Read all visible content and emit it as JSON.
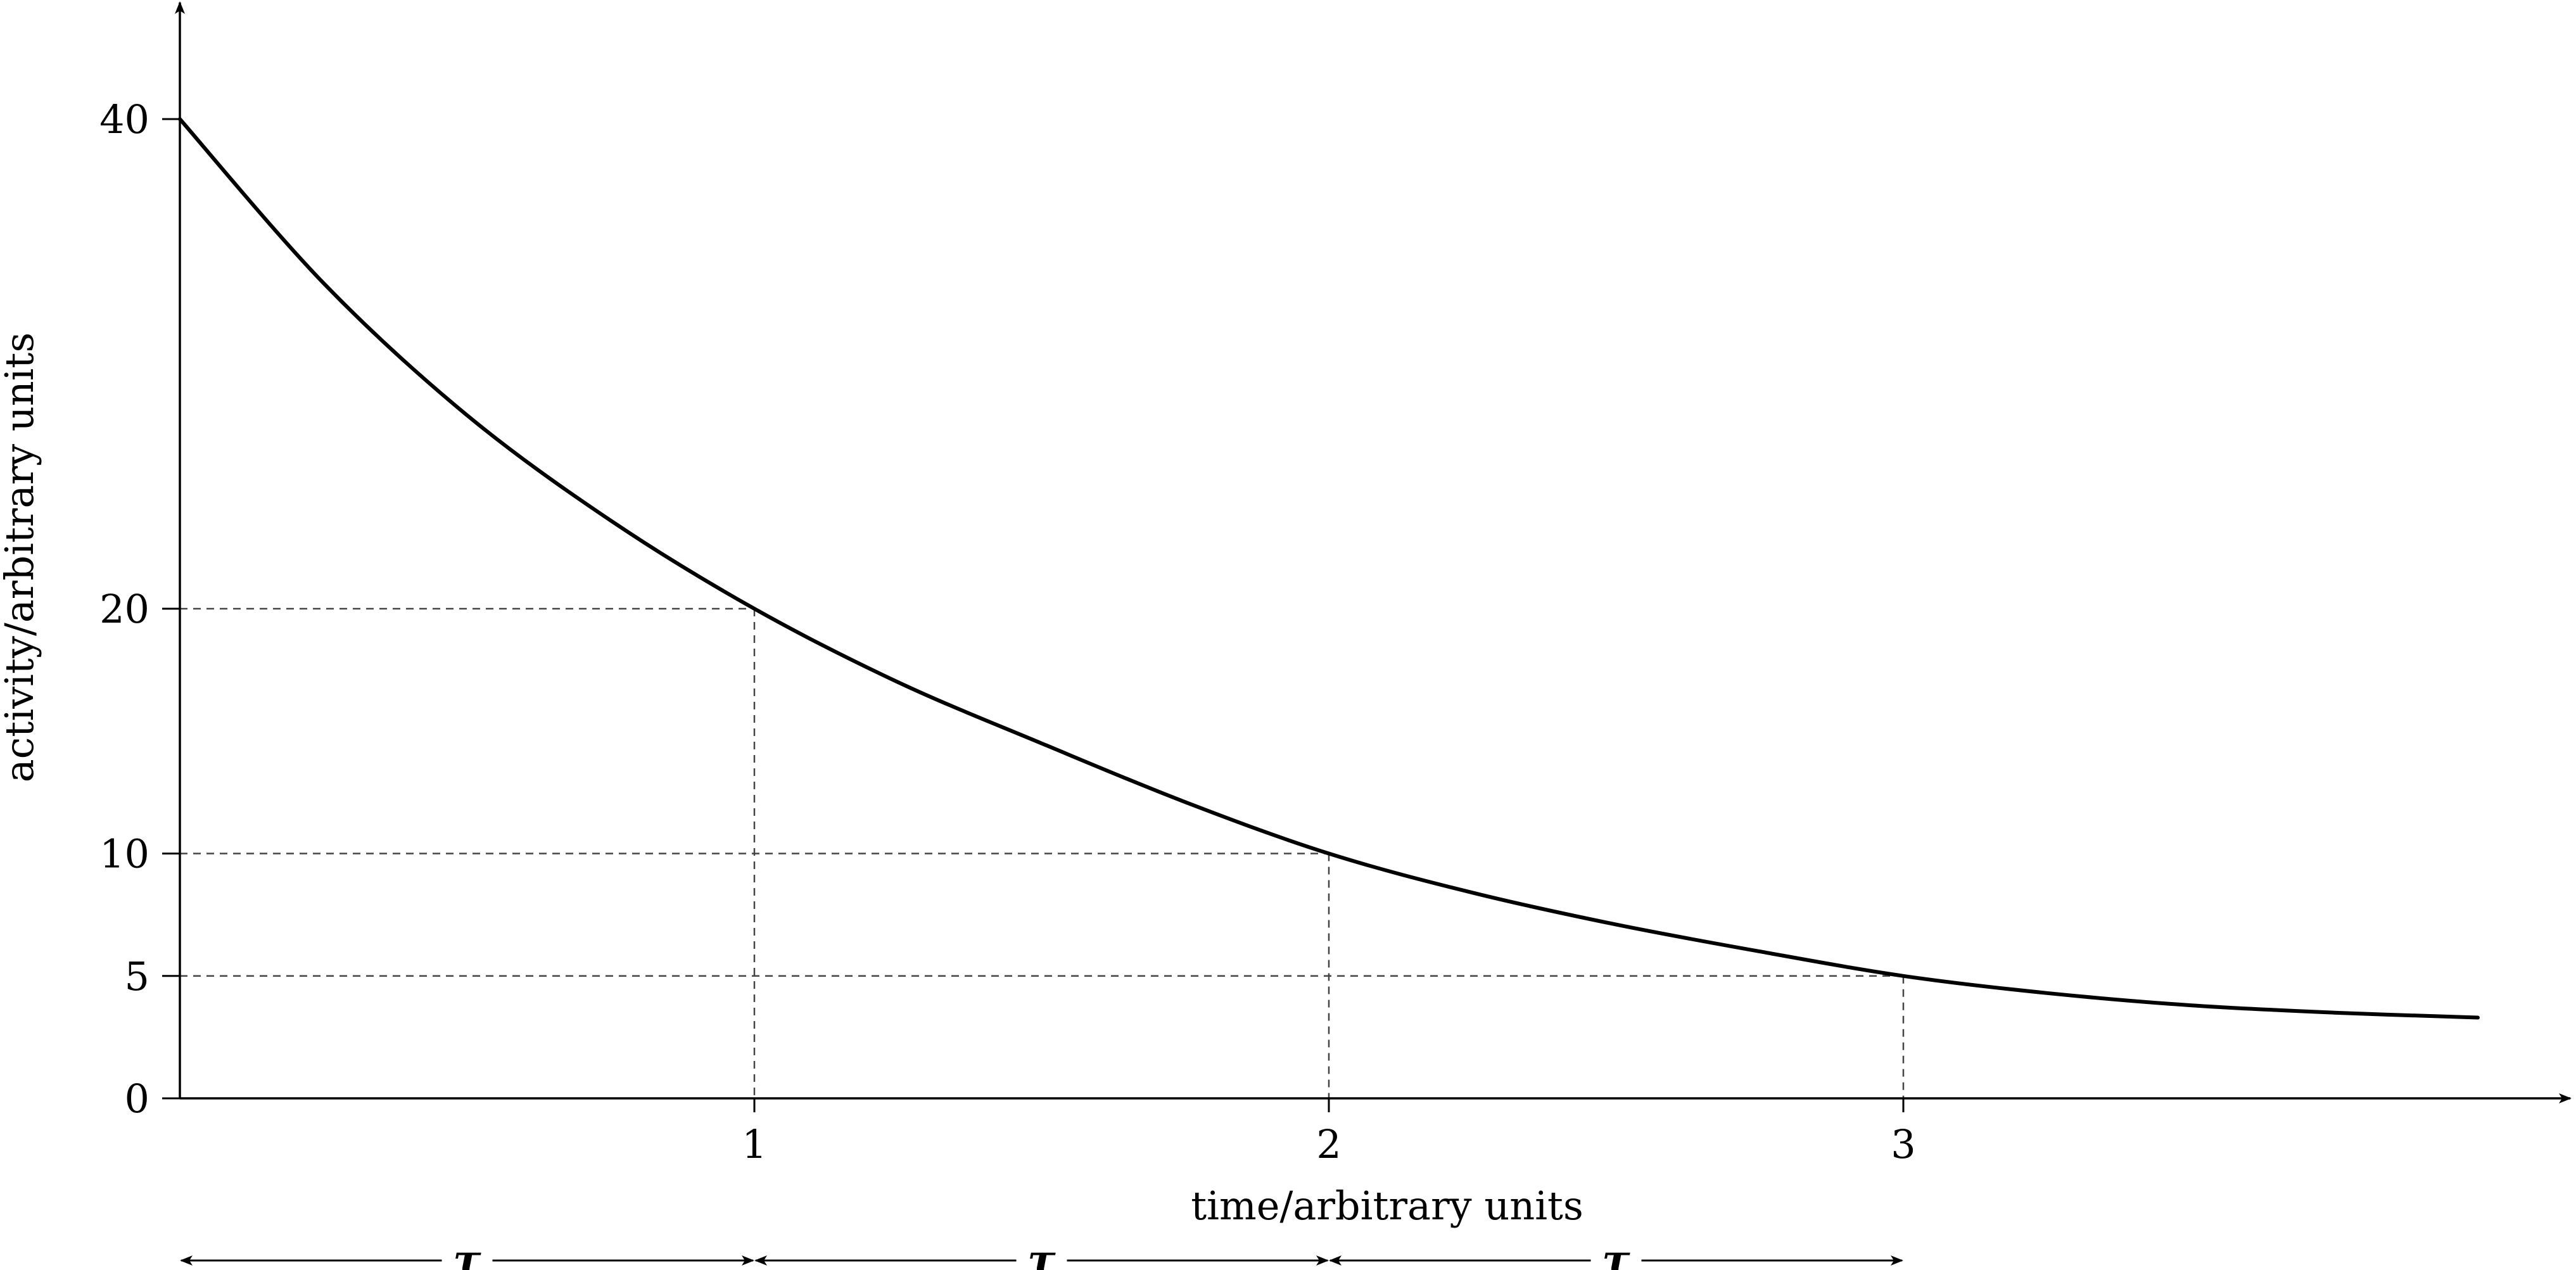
{
  "chart_data": {
    "type": "line",
    "title": "",
    "xlabel": "time/arbitrary units",
    "ylabel": "activity/arbitrary units",
    "xlim": [
      0,
      4.1
    ],
    "ylim": [
      0,
      40
    ],
    "x_ticks": [
      {
        "value": 1,
        "label": "1"
      },
      {
        "value": 2,
        "label": "2"
      },
      {
        "value": 3,
        "label": "3"
      }
    ],
    "y_ticks": [
      {
        "value": 0,
        "label": "0"
      },
      {
        "value": 5,
        "label": "5"
      },
      {
        "value": 10,
        "label": "10"
      },
      {
        "value": 20,
        "label": "20"
      },
      {
        "value": 40,
        "label": "40"
      }
    ],
    "series": [
      {
        "x": [
          0,
          0.25,
          0.5,
          0.75,
          1.0,
          1.25,
          1.5,
          1.75,
          2.0,
          2.25,
          2.5,
          2.75,
          3.0,
          3.25,
          3.5,
          3.75,
          4.0
        ],
        "y": [
          40,
          33.3,
          27.9,
          23.6,
          20,
          17.0,
          14.5,
          12.1,
          10,
          8.4,
          7.1,
          6.0,
          5.0,
          4.3,
          3.8,
          3.5,
          3.3
        ]
      }
    ],
    "reference_lines": [
      {
        "x": 1,
        "y": 20
      },
      {
        "x": 2,
        "y": 10
      },
      {
        "x": 3,
        "y": 5
      }
    ],
    "intervals": [
      {
        "from": 0,
        "to": 1,
        "label": "τ"
      },
      {
        "from": 1,
        "to": 2,
        "label": "τ"
      },
      {
        "from": 2,
        "to": 3,
        "label": "τ"
      }
    ],
    "grid": false,
    "legend": "none"
  }
}
